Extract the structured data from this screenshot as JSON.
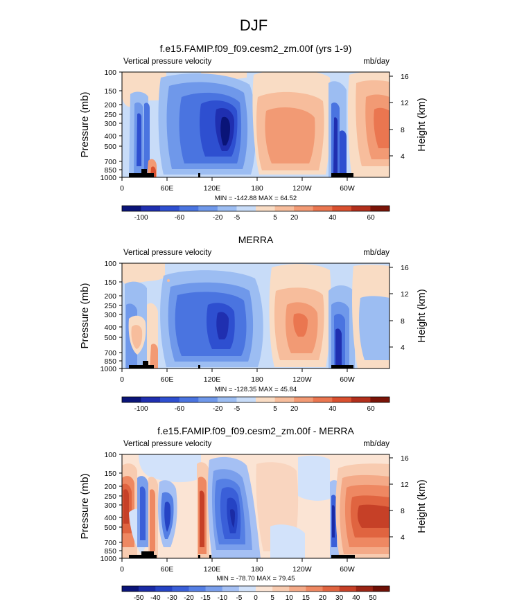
{
  "figure": {
    "season_title": "DJF"
  },
  "chart_data": [
    {
      "type": "heatmap",
      "title": "f.e15.FAMIP.f09_f09.cesm2_zm.00f (yrs 1-9)",
      "left_label": "Vertical pressure velocity",
      "right_label": "mb/day",
      "ylabel": "Pressure (mb)",
      "y2label": "Height (km)",
      "x_ticks": [
        "0",
        "60E",
        "120E",
        "180",
        "120W",
        "60W"
      ],
      "y_ticks": [
        "100",
        "150",
        "200",
        "250",
        "300",
        "400",
        "500",
        "700",
        "850",
        "1000"
      ],
      "y2_ticks": [
        "16",
        "12",
        "8",
        "4"
      ],
      "stats": "MIN = -142.88  MAX =  64.52",
      "colorbar_labels": [
        "-100",
        "-60",
        "-20",
        "-5",
        "5",
        "20",
        "40",
        "60"
      ],
      "palette": [
        "#0a1478",
        "#1f2fb0",
        "#2e4fd0",
        "#4a74e0",
        "#6f98ea",
        "#9cbdf2",
        "#c8dcf8",
        "#f9dcc4",
        "#f7bd9c",
        "#f29a74",
        "#ea7650",
        "#d9502f",
        "#b22f1c",
        "#7a1408"
      ]
    },
    {
      "type": "heatmap",
      "title": "MERRA",
      "left_label": "Vertical pressure velocity",
      "right_label": "mb/day",
      "ylabel": "Pressure (mb)",
      "y2label": "Height (km)",
      "x_ticks": [
        "0",
        "60E",
        "120E",
        "180",
        "120W",
        "60W"
      ],
      "y_ticks": [
        "100",
        "150",
        "200",
        "250",
        "300",
        "400",
        "500",
        "700",
        "850",
        "1000"
      ],
      "y2_ticks": [
        "16",
        "12",
        "8",
        "4"
      ],
      "stats": "MIN = -128.35  MAX =  45.84",
      "colorbar_labels": [
        "-100",
        "-60",
        "-20",
        "-5",
        "5",
        "20",
        "40",
        "60"
      ],
      "palette": [
        "#0a1478",
        "#1f2fb0",
        "#2e4fd0",
        "#4a74e0",
        "#6f98ea",
        "#9cbdf2",
        "#c8dcf8",
        "#f9dcc4",
        "#f7bd9c",
        "#f29a74",
        "#ea7650",
        "#d9502f",
        "#b22f1c",
        "#7a1408"
      ]
    },
    {
      "type": "heatmap",
      "title": "f.e15.FAMIP.f09_f09.cesm2_zm.00f - MERRA",
      "left_label": "Vertical pressure velocity",
      "right_label": "mb/day",
      "ylabel": "Pressure (mb)",
      "y2label": "Height (km)",
      "x_ticks": [
        "0",
        "60E",
        "120E",
        "180",
        "120W",
        "60W"
      ],
      "y_ticks": [
        "100",
        "150",
        "200",
        "250",
        "300",
        "400",
        "500",
        "700",
        "850",
        "1000"
      ],
      "y2_ticks": [
        "16",
        "12",
        "8",
        "4"
      ],
      "stats": "MIN = -78.70  MAX =  79.45",
      "colorbar_labels": [
        "-50",
        "-40",
        "-30",
        "-20",
        "-15",
        "-10",
        "-5",
        "0",
        "5",
        "10",
        "15",
        "20",
        "30",
        "40",
        "50"
      ],
      "palette": [
        "#0a1478",
        "#1a2ba5",
        "#2543c4",
        "#3a5fd8",
        "#557fe4",
        "#7a9fec",
        "#a5c0f4",
        "#d2e2fa",
        "#fbe4d4",
        "#f8cbb0",
        "#f4aa88",
        "#ee8862",
        "#e06440",
        "#c64027",
        "#9a2414",
        "#6e1006"
      ]
    }
  ]
}
